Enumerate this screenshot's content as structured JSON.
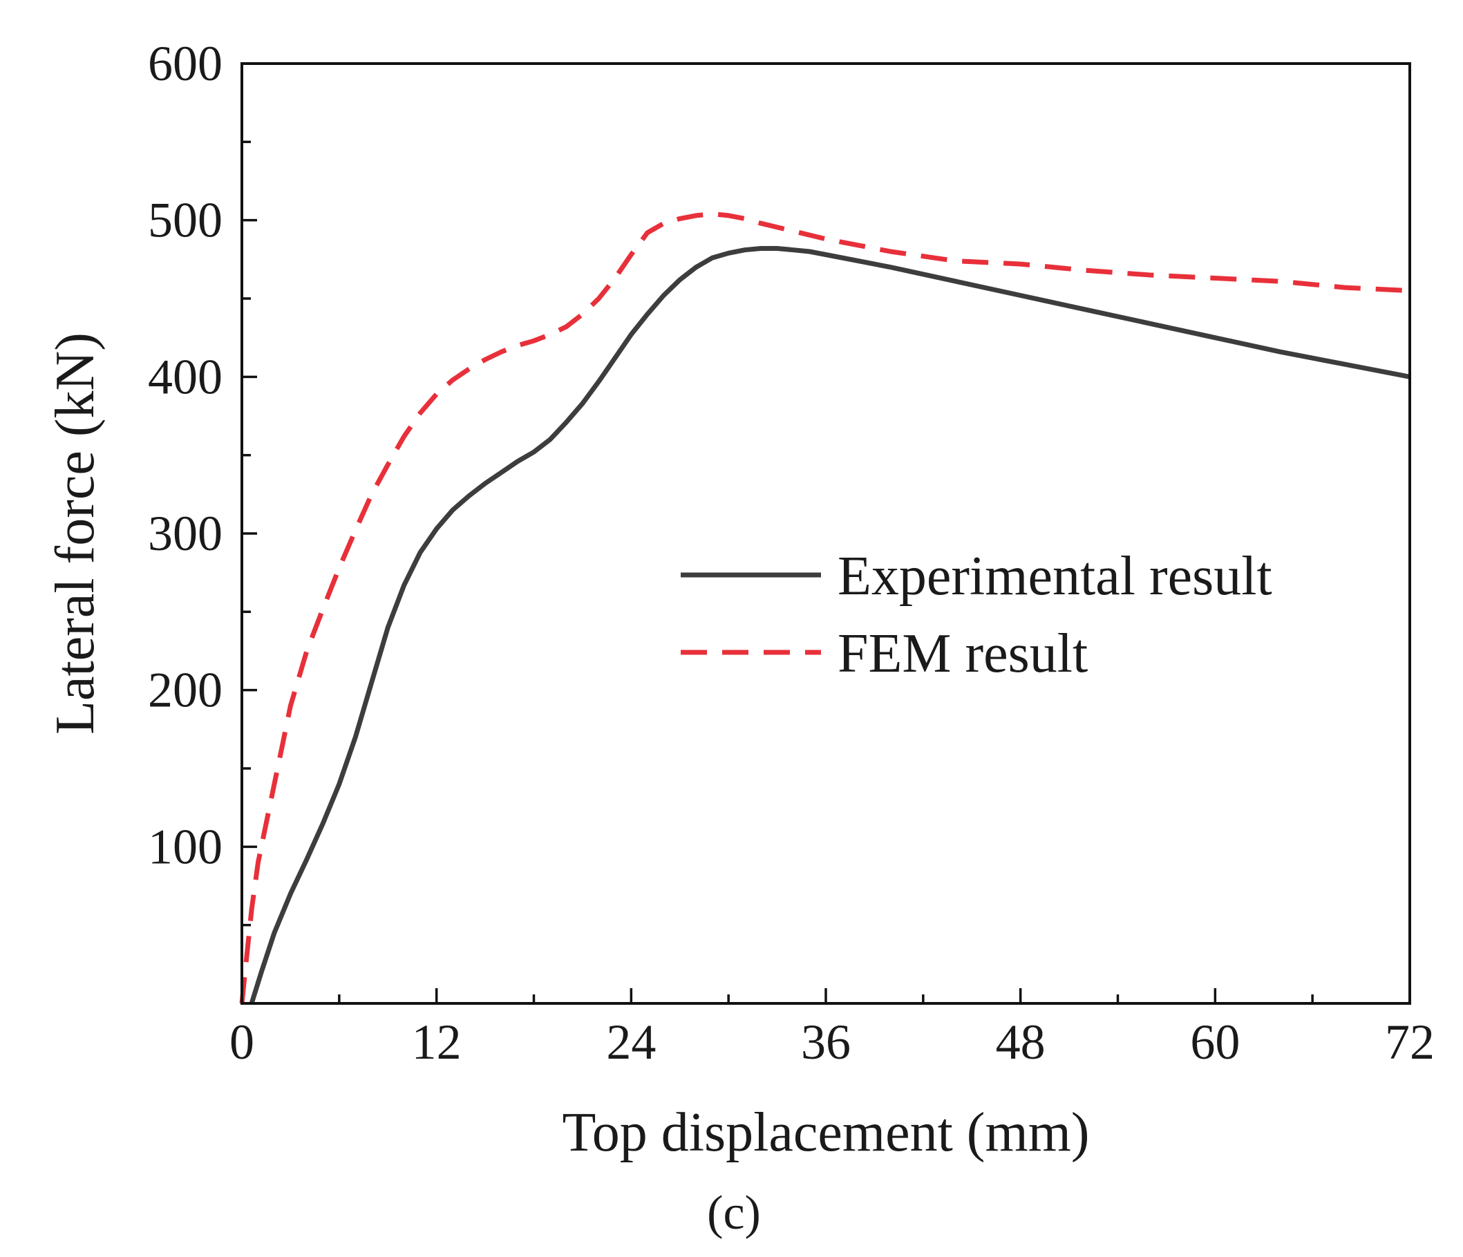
{
  "chart_data": {
    "type": "line",
    "xlabel": "Top displacement (mm)",
    "ylabel": "Lateral force (kN)",
    "xlim": [
      0,
      72
    ],
    "ylim": [
      0,
      600
    ],
    "x_ticks": [
      0,
      12,
      24,
      36,
      48,
      60,
      72
    ],
    "y_ticks": [
      100,
      200,
      300,
      400,
      500,
      600
    ],
    "x_minor_step": 6,
    "y_minor_step": 50,
    "grid": false,
    "legend_position": "center-right",
    "caption": "(c)",
    "series": [
      {
        "name": "Experimental result",
        "color": "#3d3d3d",
        "style": "solid",
        "x": [
          0.6,
          1.2,
          2.0,
          3.0,
          4.0,
          5.0,
          6.0,
          7.0,
          8.0,
          9.0,
          10.0,
          11.0,
          12.0,
          13.0,
          14.0,
          15.0,
          16.0,
          17.0,
          18.0,
          19.0,
          20.0,
          21.0,
          22.0,
          23.0,
          24.0,
          25.0,
          26.0,
          27.0,
          28.0,
          29.0,
          30.0,
          31.0,
          32.0,
          33.0,
          34.0,
          35.0,
          36.0,
          40.0,
          44.0,
          48.0,
          52.0,
          56.0,
          60.0,
          64.0,
          68.0,
          72.0
        ],
        "y": [
          0,
          20,
          45,
          70,
          92,
          115,
          140,
          170,
          205,
          240,
          267,
          288,
          303,
          315,
          324,
          332,
          339,
          346,
          352,
          360,
          371,
          383,
          397,
          412,
          427,
          440,
          452,
          462,
          470,
          476,
          479,
          481,
          482,
          482,
          481,
          480,
          478,
          470,
          461,
          452,
          443,
          434,
          425,
          416,
          408,
          400
        ],
        "values": [
          0,
          20,
          45,
          70,
          92,
          115,
          140,
          170,
          205,
          240,
          267,
          288,
          303,
          315,
          324,
          332,
          339,
          346,
          352,
          360,
          371,
          383,
          397,
          412,
          427,
          440,
          452,
          462,
          470,
          476,
          479,
          481,
          482,
          482,
          481,
          480,
          478,
          470,
          461,
          452,
          443,
          434,
          425,
          416,
          408,
          400
        ]
      },
      {
        "name": "FEM result",
        "color": "#e8303a",
        "style": "dashed",
        "x": [
          0.0,
          0.3,
          0.6,
          1.0,
          1.5,
          2.0,
          2.5,
          3.0,
          4.0,
          5.0,
          6.0,
          7.0,
          8.0,
          9.0,
          10.0,
          11.0,
          12.0,
          13.0,
          14.0,
          15.0,
          16.0,
          17.0,
          18.0,
          19.0,
          20.0,
          21.0,
          22.0,
          23.0,
          24.0,
          25.0,
          26.0,
          27.0,
          28.0,
          29.0,
          30.0,
          31.0,
          32.0,
          34.0,
          36.0,
          40.0,
          44.0,
          48.0,
          52.0,
          56.0,
          60.0,
          64.0,
          68.0,
          72.0
        ],
        "y": [
          0,
          30,
          60,
          90,
          115,
          140,
          165,
          190,
          225,
          252,
          278,
          302,
          325,
          344,
          362,
          377,
          389,
          398,
          405,
          411,
          416,
          420,
          423,
          427,
          432,
          440,
          450,
          463,
          478,
          492,
          498,
          501,
          503,
          504,
          503,
          501,
          498,
          493,
          488,
          480,
          474,
          472,
          468,
          465,
          463,
          461,
          457,
          455
        ],
        "values": [
          0,
          30,
          60,
          90,
          115,
          140,
          165,
          190,
          225,
          252,
          278,
          302,
          325,
          344,
          362,
          377,
          389,
          398,
          405,
          411,
          416,
          420,
          423,
          427,
          432,
          440,
          450,
          463,
          478,
          492,
          498,
          501,
          503,
          504,
          503,
          501,
          498,
          493,
          488,
          480,
          474,
          472,
          468,
          465,
          463,
          461,
          457,
          455
        ]
      }
    ]
  }
}
